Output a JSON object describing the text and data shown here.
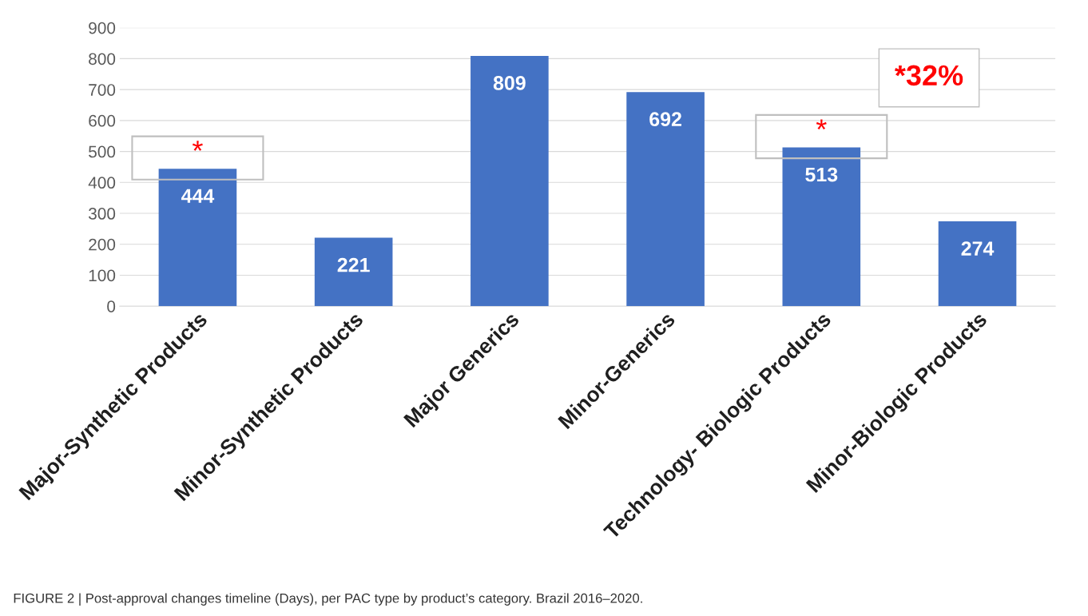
{
  "chart_data": {
    "type": "bar",
    "categories": [
      "Major-Synthetic Products",
      "Minor-Synthetic Products",
      "Major Generics",
      "Minor-Generics",
      "Technology- Biologic Products",
      "Minor-Biologic Products"
    ],
    "values": [
      444,
      221,
      809,
      692,
      513,
      274
    ],
    "color": "#4472c4",
    "ylim": [
      0,
      900
    ],
    "yticks": [
      0,
      100,
      200,
      300,
      400,
      500,
      600,
      700,
      800,
      900
    ],
    "grid": "y",
    "data_labels": true,
    "annotations": [
      {
        "text": "*",
        "x": "Major-Synthetic Products",
        "y": 444
      },
      {
        "text": "*",
        "x": "Technology- Biologic Products",
        "y": 513
      },
      "*32%",
      "FIGURE 2 | Post-approval changes timeline (Days), per PAC type by product’s category. Brazil 2016–2020."
    ]
  }
}
